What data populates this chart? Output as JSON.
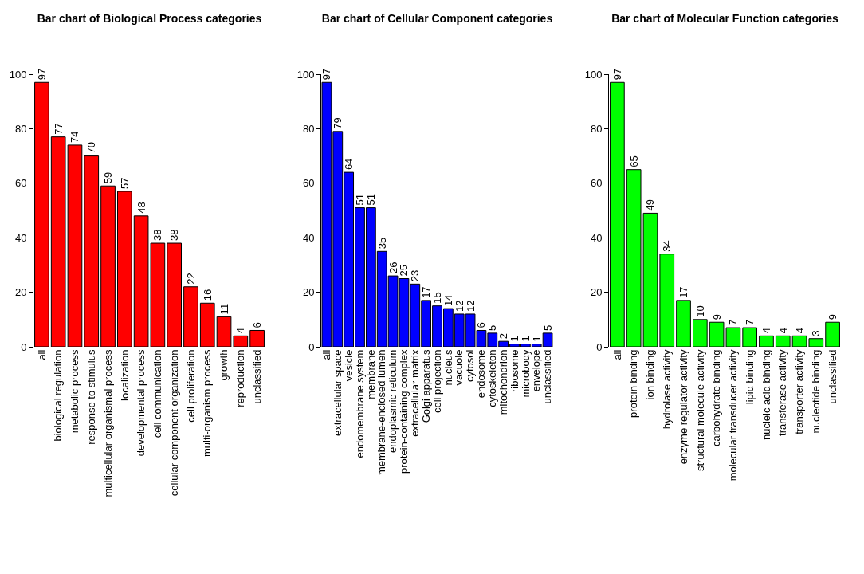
{
  "chart_data": [
    {
      "type": "bar",
      "title": "Bar chart of Biological Process categories",
      "categories": [
        "all",
        "biological regulation",
        "metabolic process",
        "response to stimulus",
        "multicellular organismal process",
        "localization",
        "developmental process",
        "cell communication",
        "cellular component organization",
        "cell proliferation",
        "multi-organism process",
        "growth",
        "reproduction",
        "unclassified"
      ],
      "values": [
        97,
        77,
        74,
        70,
        59,
        57,
        48,
        38,
        38,
        22,
        16,
        11,
        4,
        6
      ],
      "color": "#ff0000",
      "ylim": [
        0,
        100
      ],
      "yticks": [
        0,
        20,
        40,
        60,
        80,
        100
      ],
      "grid": false,
      "data_labels": true
    },
    {
      "type": "bar",
      "title": "Bar chart of Cellular Component categories",
      "categories": [
        "all",
        "extracellular space",
        "vesicle",
        "endomembrane system",
        "membrane",
        "membrane-enclosed lumen",
        "endoplasmic reticulum",
        "protein-containing complex",
        "extracellular matrix",
        "Golgi apparatus",
        "cell projection",
        "nucleus",
        "vacuole",
        "cytosol",
        "endosome",
        "cytoskeleton",
        "mitochondrion",
        "ribosome",
        "microbody",
        "envelope",
        "unclassified"
      ],
      "values": [
        97,
        79,
        64,
        51,
        51,
        35,
        26,
        25,
        23,
        17,
        15,
        14,
        12,
        12,
        6,
        5,
        2,
        1,
        1,
        1,
        5
      ],
      "color": "#0000ff",
      "ylim": [
        0,
        100
      ],
      "yticks": [
        0,
        20,
        40,
        60,
        80,
        100
      ],
      "grid": false,
      "data_labels": true
    },
    {
      "type": "bar",
      "title": "Bar chart of Molecular Function categories",
      "categories": [
        "all",
        "protein binding",
        "ion binding",
        "hydrolase activity",
        "enzyme regulator activity",
        "structural molecule activity",
        "carbohydrate binding",
        "molecular transducer activity",
        "lipid binding",
        "nucleic acid binding",
        "transferase activity",
        "transporter activity",
        "nucleotide binding",
        "unclassified"
      ],
      "values": [
        97,
        65,
        49,
        34,
        17,
        10,
        9,
        7,
        7,
        4,
        4,
        4,
        3,
        9
      ],
      "color": "#00ff00",
      "ylim": [
        0,
        100
      ],
      "yticks": [
        0,
        20,
        40,
        60,
        80,
        100
      ],
      "grid": false,
      "data_labels": true
    }
  ]
}
